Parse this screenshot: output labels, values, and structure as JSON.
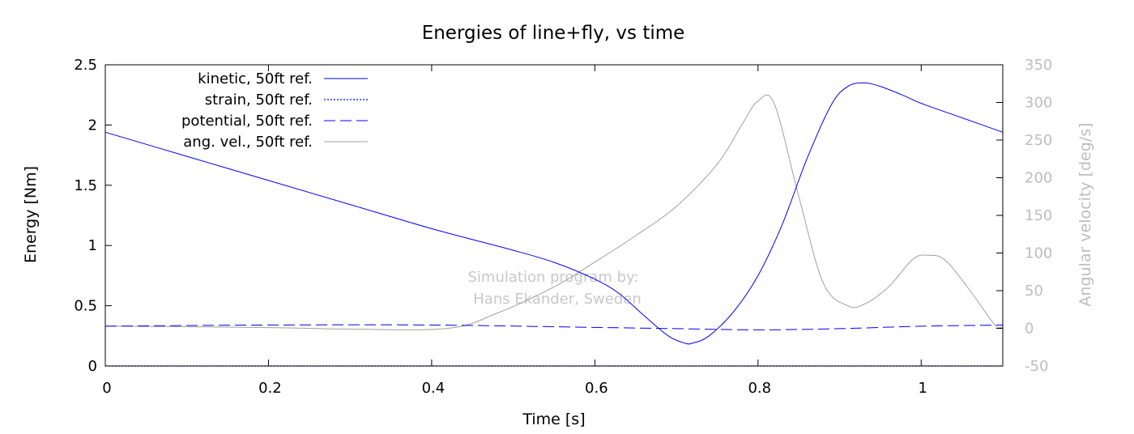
{
  "chart_data": {
    "type": "line",
    "title": "Energies of line+fly, vs time",
    "xlabel": "Time [s]",
    "ylabel": "Energy [Nm]",
    "y2label": "Angular velocity [deg/s]",
    "xlim": [
      0,
      1.1
    ],
    "ylim": [
      0,
      2.5
    ],
    "y2lim": [
      -50,
      350
    ],
    "xticks": [
      0,
      0.2,
      0.4,
      0.6,
      0.8,
      1
    ],
    "xtick_labels": [
      "0",
      "0.2",
      "0.4",
      "0.6",
      "0.8",
      "1"
    ],
    "yticks": [
      0,
      0.5,
      1,
      1.5,
      2,
      2.5
    ],
    "ytick_labels": [
      "0",
      "0.5",
      "1",
      "1.5",
      "2",
      "2.5"
    ],
    "y2ticks": [
      -50,
      0,
      50,
      100,
      150,
      200,
      250,
      300,
      350
    ],
    "y2tick_labels": [
      "-50",
      "0",
      "50",
      "100",
      "150",
      "200",
      "250",
      "300",
      "350"
    ],
    "grid": false,
    "legend_position": "top-left",
    "annotation": [
      "Simulation program by:",
      "Hans Ekander, Sweden"
    ],
    "series": [
      {
        "name": "kinetic, 50ft ref.",
        "axis": "left",
        "color": "#0000ff",
        "style": "solid",
        "x": [
          0,
          0.1,
          0.2,
          0.3,
          0.4,
          0.5,
          0.55,
          0.6,
          0.63,
          0.66,
          0.69,
          0.71,
          0.72,
          0.74,
          0.77,
          0.8,
          0.83,
          0.86,
          0.89,
          0.91,
          0.93,
          0.95,
          0.98,
          1.0,
          1.05,
          1.1
        ],
        "y": [
          1.94,
          1.74,
          1.54,
          1.34,
          1.14,
          0.96,
          0.86,
          0.72,
          0.6,
          0.42,
          0.25,
          0.19,
          0.19,
          0.25,
          0.45,
          0.75,
          1.18,
          1.72,
          2.17,
          2.32,
          2.35,
          2.32,
          2.24,
          2.18,
          2.06,
          1.94
        ]
      },
      {
        "name": "strain, 50ft ref.",
        "axis": "left",
        "color": "#0000ff",
        "style": "dotted",
        "x": [
          0,
          1.1
        ],
        "y": [
          0.0,
          0.0
        ]
      },
      {
        "name": "potential, 50ft ref.",
        "axis": "left",
        "color": "#0000ff",
        "style": "dashed",
        "x": [
          0,
          0.2,
          0.4,
          0.6,
          0.7,
          0.8,
          0.9,
          1.0,
          1.1
        ],
        "y": [
          0.33,
          0.34,
          0.34,
          0.32,
          0.31,
          0.3,
          0.31,
          0.33,
          0.34
        ]
      },
      {
        "name": "ang. vel., 50ft ref.",
        "axis": "right",
        "color": "#a0a0a0",
        "style": "solid",
        "x": [
          0,
          0.2,
          0.3,
          0.42,
          0.48,
          0.55,
          0.6,
          0.65,
          0.7,
          0.75,
          0.78,
          0.8,
          0.82,
          0.85,
          0.88,
          0.91,
          0.93,
          0.96,
          0.99,
          1.01,
          1.03,
          1.06,
          1.09,
          1.1
        ],
        "y": [
          3,
          1,
          -1,
          0,
          20,
          55,
          88,
          123,
          162,
          218,
          270,
          302,
          298,
          175,
          60,
          30,
          32,
          55,
          92,
          97,
          90,
          50,
          5,
          2
        ]
      }
    ]
  }
}
